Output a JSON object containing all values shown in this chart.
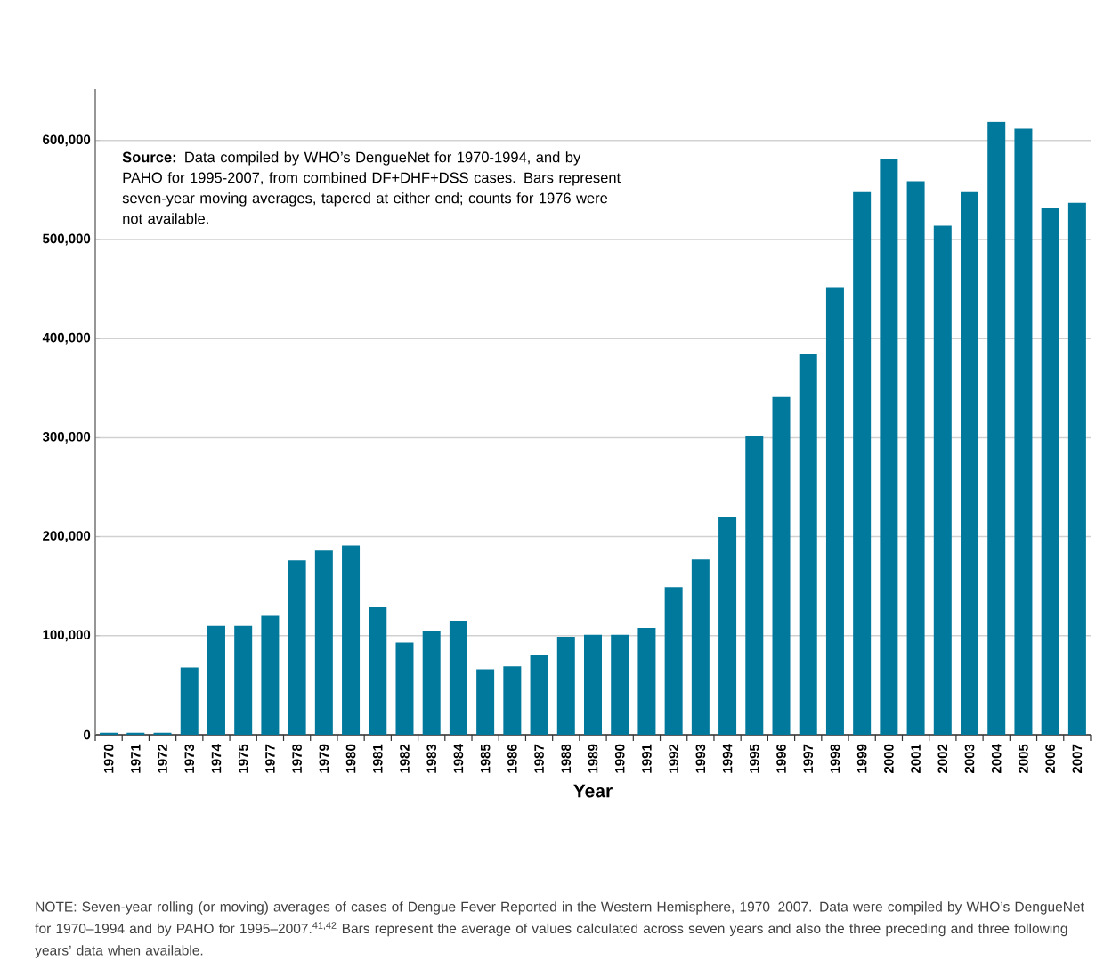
{
  "chart_data": {
    "type": "bar",
    "xlabel": "Year",
    "categories": [
      "1970",
      "1971",
      "1972",
      "1973",
      "1974",
      "1975",
      "1977",
      "1978",
      "1979",
      "1980",
      "1981",
      "1982",
      "1983",
      "1984",
      "1985",
      "1986",
      "1987",
      "1988",
      "1989",
      "1990",
      "1991",
      "1992",
      "1993",
      "1994",
      "1995",
      "1996",
      "1997",
      "1998",
      "1999",
      "2000",
      "2001",
      "2002",
      "2003",
      "2004",
      "2005",
      "2006",
      "2007"
    ],
    "values": [
      2000,
      2000,
      2000,
      68000,
      110000,
      110000,
      120000,
      176000,
      186000,
      191000,
      129000,
      93000,
      105000,
      115000,
      66000,
      69000,
      80000,
      99000,
      101000,
      101000,
      108000,
      149000,
      177000,
      220000,
      302000,
      341000,
      385000,
      452000,
      548000,
      581000,
      559000,
      514000,
      548000,
      619000,
      612000,
      532000,
      537000
    ],
    "color": "#00799c",
    "ylim": [
      0,
      652000
    ],
    "yticks": [
      0,
      {
        "value": 100000,
        "label": "100,000"
      },
      {
        "value": 200000,
        "label": "200,000"
      },
      {
        "value": 300000,
        "label": "300,000"
      },
      {
        "value": 400000,
        "label": "400,000"
      },
      {
        "value": 500000,
        "label": "500,000"
      },
      {
        "value": 600000,
        "label": "600,000"
      }
    ],
    "grid": "y",
    "annotations": [
      "**Source:** Data compiled by WHO’s DengueNet for 1970-1994, and by PAHO for 1995-2007, from combined DF+DHF+DSS cases. Bars represent seven-year moving averages, tapered at either end; counts for 1976 were not available.",
      "NOTE: Seven-year rolling (or moving) averages of cases of Dengue Fever Reported in the Western Hemisphere, 1970–2007. Data were compiled by WHO’s DengueNet for 1970–1994 and by PAHO for 1995–2007.$^{41,42}$ Bars represent the average of values calculated across seven years and also the three preceding and three following years’ data when available."
    ]
  }
}
